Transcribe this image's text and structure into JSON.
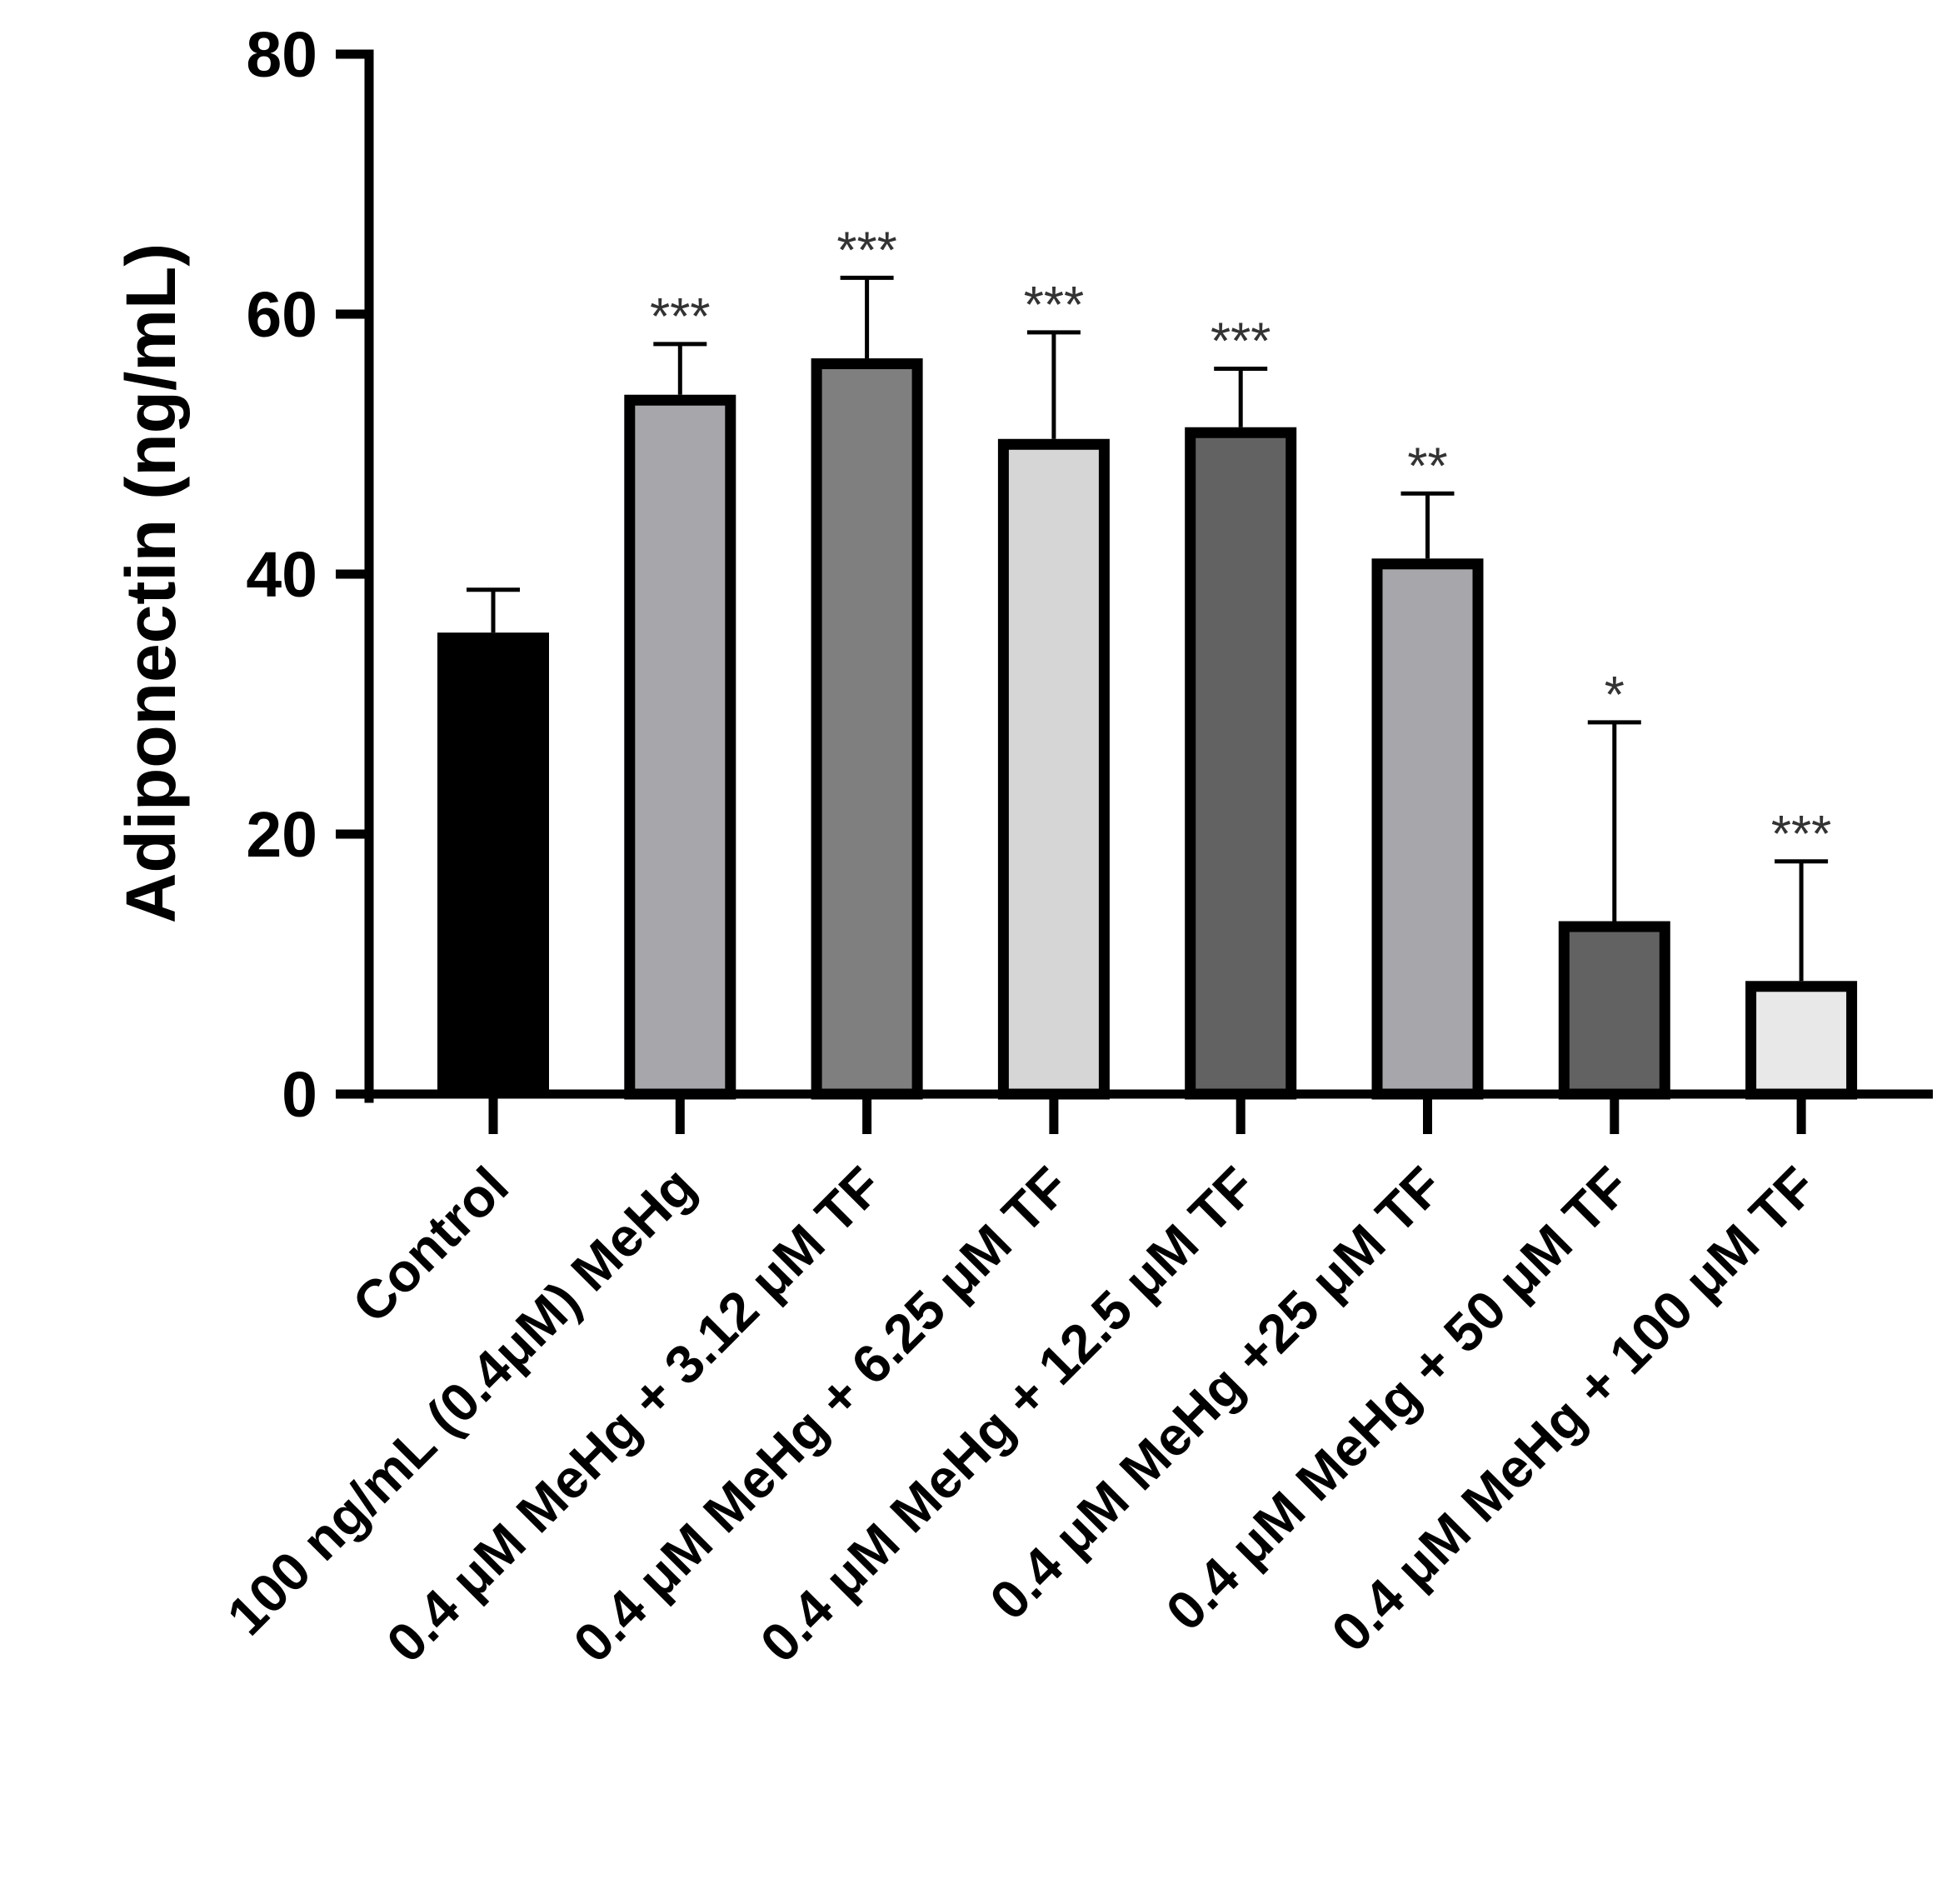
{
  "chart_data": {
    "type": "bar",
    "title": "",
    "xlabel": "",
    "ylabel": "Adiponectin (ng/mL)",
    "ylim": [
      0,
      80
    ],
    "yticks": [
      0,
      20,
      40,
      60,
      80
    ],
    "ytick_labels": [
      "0",
      "20",
      "40",
      "60",
      "80"
    ],
    "grid": false,
    "categories": [
      "Control",
      "100 ng/mL (0.4μM) MeHg",
      "0.4 μM MeHg + 3.12 μM TF",
      "0.4 μM MeHg + 6.25 μM TF",
      "0.4 μM MeHg + 12.5 μM TF",
      "0.4 μM MeHg +25 μM TF",
      "0.4 μM MeHg + 50 μM TF",
      "0.4 μM MeHg + 100 μM TF"
    ],
    "values": [
      35.5,
      53.8,
      56.6,
      50.4,
      51.3,
      41.2,
      13.3,
      8.7
    ],
    "errors": [
      3.3,
      3.9,
      6.2,
      8.2,
      4.5,
      5.0,
      15.3,
      9.2
    ],
    "significance": [
      "",
      "***",
      "***",
      "***",
      "***",
      "**",
      "*",
      "***"
    ],
    "bar_colors": [
      "#000000",
      "#a7a6ab",
      "#7f7f7f",
      "#d6d6d6",
      "#626262",
      "#a7a6ab",
      "#626262",
      "#e8e8e8"
    ],
    "edge_color": "#000000"
  }
}
